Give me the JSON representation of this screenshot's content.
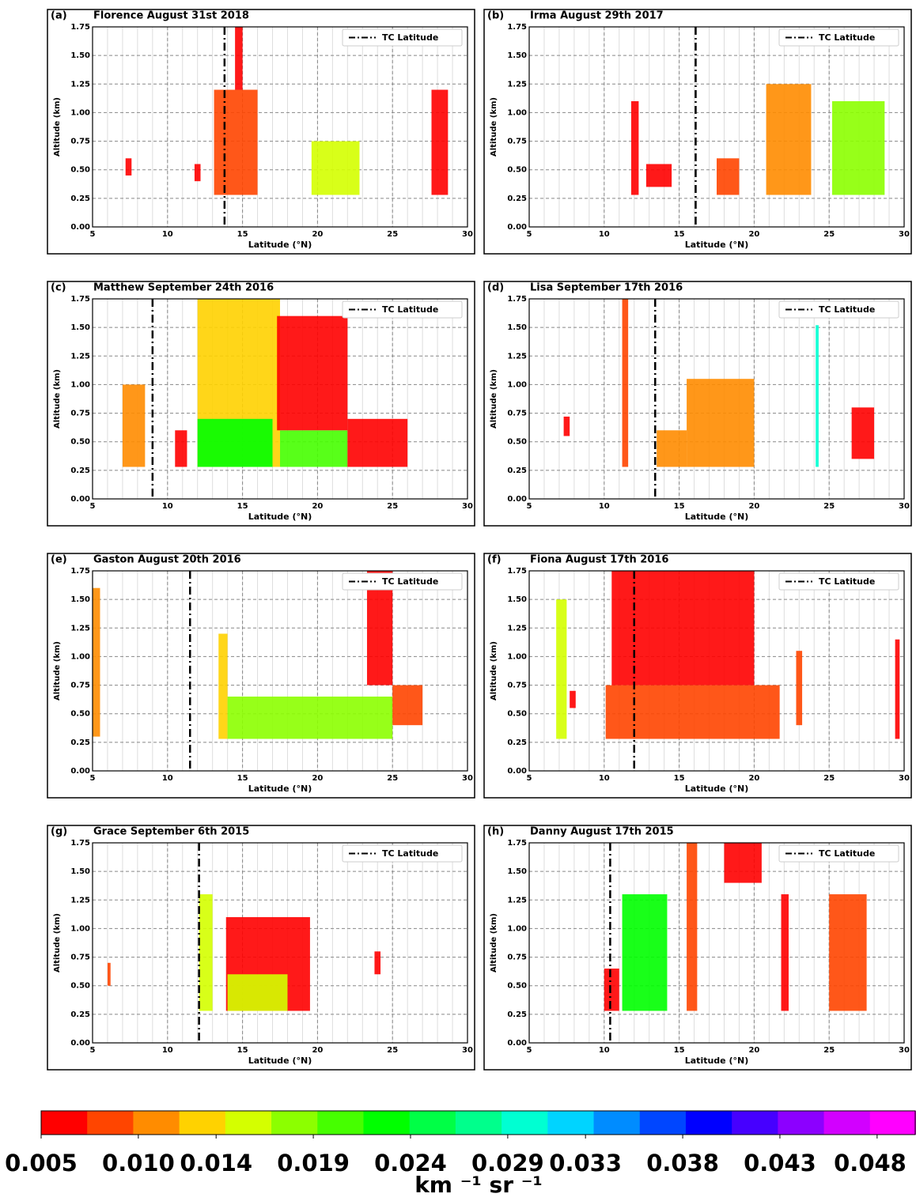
{
  "chart_data": [
    {
      "type": "contour",
      "panel_label": "(a)",
      "title": "Florence August 31st 2018",
      "xlabel": "Latitude (°N)",
      "ylabel": "Altitude (km)",
      "legend": "TC Latitude",
      "tc_latitude": 13.8,
      "xlim": [
        5,
        30
      ],
      "xticks": [
        5,
        10,
        15,
        20,
        25,
        30
      ],
      "ylim": [
        0,
        1.75
      ],
      "yticks": [
        {
          "value": 0,
          "label": "0.00"
        },
        0.25,
        {
          "value": 0.5,
          "label": "0.50"
        },
        0.75,
        {
          "value": 1,
          "label": "1.00"
        },
        1.25,
        {
          "value": 1.5,
          "label": "1.50"
        },
        1.75
      ],
      "regions": [
        {
          "lat": [
            7.2,
            7.6
          ],
          "alt": [
            0.45,
            0.6
          ],
          "value": 0.007
        },
        {
          "lat": [
            11.8,
            12.2
          ],
          "alt": [
            0.4,
            0.55
          ],
          "value": 0.006
        },
        {
          "lat": [
            13.1,
            16
          ],
          "alt": [
            0.28,
            1.2
          ],
          "value": 0.009
        },
        {
          "lat": [
            14.5,
            15
          ],
          "alt": [
            1.2,
            1.75
          ],
          "value": 0.006
        },
        {
          "lat": [
            19.6,
            22.8
          ],
          "alt": [
            0.28,
            0.75
          ],
          "value": 0.015
        },
        {
          "lat": [
            27.6,
            28.7
          ],
          "alt": [
            0.28,
            1.2
          ],
          "value": 0.007
        }
      ]
    },
    {
      "type": "contour",
      "panel_label": "(b)",
      "title": "Irma August 29th 2017",
      "xlabel": "Latitude (°N)",
      "ylabel": "Altitude (km)",
      "legend": "TC Latitude",
      "tc_latitude": 16.1,
      "xlim": [
        5,
        30
      ],
      "xticks": [
        5,
        10,
        15,
        20,
        25,
        30
      ],
      "ylim": [
        0,
        1.75
      ],
      "yticks": [
        {
          "value": 0,
          "label": "0.00"
        },
        0.25,
        {
          "value": 0.5,
          "label": "0.50"
        },
        0.75,
        {
          "value": 1,
          "label": "1.00"
        },
        1.25,
        {
          "value": 1.5,
          "label": "1.50"
        },
        1.75
      ],
      "regions": [
        {
          "lat": [
            11.8,
            12.3
          ],
          "alt": [
            0.28,
            1.1
          ],
          "value": 0.006
        },
        {
          "lat": [
            12.8,
            14.5
          ],
          "alt": [
            0.35,
            0.55
          ],
          "value": 0.006
        },
        {
          "lat": [
            17.5,
            19
          ],
          "alt": [
            0.28,
            0.6
          ],
          "value": 0.008
        },
        {
          "lat": [
            20.8,
            23.8
          ],
          "alt": [
            0.28,
            1.25
          ],
          "value": 0.01
        },
        {
          "lat": [
            25.2,
            28.7
          ],
          "alt": [
            0.28,
            1.1
          ],
          "value": 0.018
        }
      ]
    },
    {
      "type": "contour",
      "panel_label": "(c)",
      "title": "Matthew September 24th 2016",
      "xlabel": "Latitude (°N)",
      "ylabel": "Altitude (km)",
      "legend": "TC Latitude",
      "tc_latitude": 9.0,
      "xlim": [
        5,
        30
      ],
      "xticks": [
        5,
        10,
        15,
        20,
        25,
        30
      ],
      "ylim": [
        0,
        1.75
      ],
      "yticks": [
        {
          "value": 0,
          "label": "0.00"
        },
        0.25,
        {
          "value": 0.5,
          "label": "0.50"
        },
        0.75,
        {
          "value": 1,
          "label": "1.00"
        },
        1.25,
        {
          "value": 1.5,
          "label": "1.50"
        },
        1.75
      ],
      "regions": [
        {
          "lat": [
            7,
            8.5
          ],
          "alt": [
            0.28,
            1
          ],
          "value": 0.012
        },
        {
          "lat": [
            10.5,
            11.3
          ],
          "alt": [
            0.28,
            0.6
          ],
          "value": 0.007
        },
        {
          "lat": [
            12,
            17.5
          ],
          "alt": [
            0.28,
            1.75
          ],
          "value": 0.013
        },
        {
          "lat": [
            12,
            17
          ],
          "alt": [
            0.28,
            0.7
          ],
          "value": 0.022
        },
        {
          "lat": [
            17.5,
            22
          ],
          "alt": [
            0.28,
            0.6
          ],
          "value": 0.02
        },
        {
          "lat": [
            17.3,
            22
          ],
          "alt": [
            0.6,
            1.6
          ],
          "value": 0.006
        },
        {
          "lat": [
            22,
            26
          ],
          "alt": [
            0.28,
            0.7
          ],
          "value": 0.007
        }
      ]
    },
    {
      "type": "contour",
      "panel_label": "(d)",
      "title": "Lisa September 17th 2016",
      "xlabel": "Latitude (°N)",
      "ylabel": "Altitude (km)",
      "legend": "TC Latitude",
      "tc_latitude": 13.4,
      "xlim": [
        5,
        30
      ],
      "xticks": [
        5,
        10,
        15,
        20,
        25,
        30
      ],
      "ylim": [
        0,
        1.75
      ],
      "yticks": [
        {
          "value": 0,
          "label": "0.00"
        },
        0.25,
        {
          "value": 0.5,
          "label": "0.50"
        },
        0.75,
        {
          "value": 1,
          "label": "1.00"
        },
        1.25,
        {
          "value": 1.5,
          "label": "1.50"
        },
        1.75
      ],
      "regions": [
        {
          "lat": [
            7.3,
            7.7
          ],
          "alt": [
            0.55,
            0.72
          ],
          "value": 0.007
        },
        {
          "lat": [
            11.2,
            11.6
          ],
          "alt": [
            0.28,
            1.75
          ],
          "value": 0.008
        },
        {
          "lat": [
            13.5,
            15.5
          ],
          "alt": [
            0.28,
            0.6
          ],
          "value": 0.01
        },
        {
          "lat": [
            15.5,
            20
          ],
          "alt": [
            0.28,
            1.05
          ],
          "value": 0.012
        },
        {
          "lat": [
            24.1,
            24.3
          ],
          "alt": [
            0.28,
            1.52
          ],
          "value": 0.03
        },
        {
          "lat": [
            26.5,
            28
          ],
          "alt": [
            0.35,
            0.8
          ],
          "value": 0.006
        }
      ]
    },
    {
      "type": "contour",
      "panel_label": "(e)",
      "title": "Gaston August 20th 2016",
      "xlabel": "Latitude (°N)",
      "ylabel": "Altitude (km)",
      "legend": "TC Latitude",
      "tc_latitude": 11.5,
      "xlim": [
        5,
        30
      ],
      "xticks": [
        5,
        10,
        15,
        20,
        25,
        30
      ],
      "ylim": [
        0,
        1.75
      ],
      "yticks": [
        {
          "value": 0,
          "label": "0.00"
        },
        0.25,
        {
          "value": 0.5,
          "label": "0.50"
        },
        0.75,
        {
          "value": 1,
          "label": "1.00"
        },
        1.25,
        {
          "value": 1.5,
          "label": "1.50"
        },
        1.75
      ],
      "regions": [
        {
          "lat": [
            5,
            5.5
          ],
          "alt": [
            0.3,
            1.6
          ],
          "value": 0.012
        },
        {
          "lat": [
            13.4,
            14
          ],
          "alt": [
            0.28,
            1.2
          ],
          "value": 0.014
        },
        {
          "lat": [
            14,
            25
          ],
          "alt": [
            0.28,
            0.65
          ],
          "value": 0.018
        },
        {
          "lat": [
            23.3,
            25
          ],
          "alt": [
            0.75,
            1.75
          ],
          "value": 0.006
        },
        {
          "lat": [
            25,
            27
          ],
          "alt": [
            0.4,
            0.75
          ],
          "value": 0.009
        }
      ]
    },
    {
      "type": "contour",
      "panel_label": "(f)",
      "title": "Fiona August 17th 2016",
      "xlabel": "Latitude (°N)",
      "ylabel": "Altitude (km)",
      "legend": "TC Latitude",
      "tc_latitude": 12.0,
      "xlim": [
        5,
        30
      ],
      "xticks": [
        5,
        10,
        15,
        20,
        25,
        30
      ],
      "ylim": [
        0,
        1.75
      ],
      "yticks": [
        {
          "value": 0,
          "label": "0.00"
        },
        0.25,
        {
          "value": 0.5,
          "label": "0.50"
        },
        0.75,
        {
          "value": 1,
          "label": "1.00"
        },
        1.25,
        {
          "value": 1.5,
          "label": "1.50"
        },
        1.75
      ],
      "regions": [
        {
          "lat": [
            6.8,
            7.5
          ],
          "alt": [
            0.28,
            1.5
          ],
          "value": 0.015
        },
        {
          "lat": [
            7.7,
            8.1
          ],
          "alt": [
            0.55,
            0.7
          ],
          "value": 0.007
        },
        {
          "lat": [
            10.1,
            21.7
          ],
          "alt": [
            0.28,
            0.75
          ],
          "value": 0.009
        },
        {
          "lat": [
            10.5,
            20
          ],
          "alt": [
            0.75,
            1.75
          ],
          "value": 0.006
        },
        {
          "lat": [
            22.8,
            23.2
          ],
          "alt": [
            0.4,
            1.05
          ],
          "value": 0.008
        },
        {
          "lat": [
            29.4,
            29.7
          ],
          "alt": [
            0.28,
            1.15
          ],
          "value": 0.007
        }
      ]
    },
    {
      "type": "contour",
      "panel_label": "(g)",
      "title": "Grace September 6th 2015",
      "xlabel": "Latitude (°N)",
      "ylabel": "Altitude (km)",
      "legend": "TC Latitude",
      "tc_latitude": 12.1,
      "xlim": [
        5,
        30
      ],
      "xticks": [
        5,
        10,
        15,
        20,
        25,
        30
      ],
      "ylim": [
        0,
        1.75
      ],
      "yticks": [
        {
          "value": 0,
          "label": "0.00"
        },
        0.25,
        {
          "value": 0.5,
          "label": "0.50"
        },
        0.75,
        {
          "value": 1,
          "label": "1.00"
        },
        1.25,
        {
          "value": 1.5,
          "label": "1.50"
        },
        1.75
      ],
      "regions": [
        {
          "lat": [
            6,
            6.2
          ],
          "alt": [
            0.5,
            0.7
          ],
          "value": 0.008
        },
        {
          "lat": [
            12.1,
            13
          ],
          "alt": [
            0.28,
            1.3
          ],
          "value": 0.015
        },
        {
          "lat": [
            13.9,
            19.5
          ],
          "alt": [
            0.28,
            1.1
          ],
          "value": 0.007
        },
        {
          "lat": [
            14,
            18
          ],
          "alt": [
            0.28,
            0.6
          ],
          "value": 0.016
        },
        {
          "lat": [
            23.8,
            24.2
          ],
          "alt": [
            0.6,
            0.8
          ],
          "value": 0.007
        }
      ]
    },
    {
      "type": "contour",
      "panel_label": "(h)",
      "title": "Danny August 17th 2015",
      "xlabel": "Latitude (°N)",
      "ylabel": "Altitude (km)",
      "legend": "TC Latitude",
      "tc_latitude": 10.4,
      "xlim": [
        5,
        30
      ],
      "xticks": [
        5,
        10,
        15,
        20,
        25,
        30
      ],
      "ylim": [
        0,
        1.75
      ],
      "yticks": [
        {
          "value": 0,
          "label": "0.00"
        },
        0.25,
        {
          "value": 0.5,
          "label": "0.50"
        },
        0.75,
        {
          "value": 1,
          "label": "1.00"
        },
        1.25,
        {
          "value": 1.5,
          "label": "1.50"
        },
        1.75
      ],
      "regions": [
        {
          "lat": [
            10,
            11
          ],
          "alt": [
            0.28,
            0.65
          ],
          "value": 0.006
        },
        {
          "lat": [
            11.2,
            14.2
          ],
          "alt": [
            0.28,
            1.3
          ],
          "value": 0.022
        },
        {
          "lat": [
            15.5,
            16.2
          ],
          "alt": [
            0.28,
            1.75
          ],
          "value": 0.008
        },
        {
          "lat": [
            18,
            20.5
          ],
          "alt": [
            1.4,
            1.75
          ],
          "value": 0.006
        },
        {
          "lat": [
            21.8,
            22.3
          ],
          "alt": [
            0.28,
            1.3
          ],
          "value": 0.007
        },
        {
          "lat": [
            25,
            27.5
          ],
          "alt": [
            0.28,
            1.3
          ],
          "value": 0.009
        }
      ]
    },
    {
      "type": "colorbar",
      "label": "km ⁻¹ sr ⁻¹",
      "clim": [
        0.005,
        0.05
      ],
      "colors": [
        "#ff0000",
        "#ff4500",
        "#ff8c00",
        "#ffd200",
        "#d4ff00",
        "#8cff00",
        "#46ff00",
        "#00ff00",
        "#00ff46",
        "#00ff8c",
        "#00ffd2",
        "#00d4ff",
        "#008cff",
        "#0046ff",
        "#0000ff",
        "#4600ff",
        "#8c00ff",
        "#d200ff",
        "#ff00ff"
      ],
      "ticks": [
        0.005,
        {
          "value": 0.01,
          "label": "0.010"
        },
        0.014,
        0.019,
        0.024,
        0.029,
        0.033,
        0.038,
        0.043,
        0.048
      ]
    }
  ]
}
